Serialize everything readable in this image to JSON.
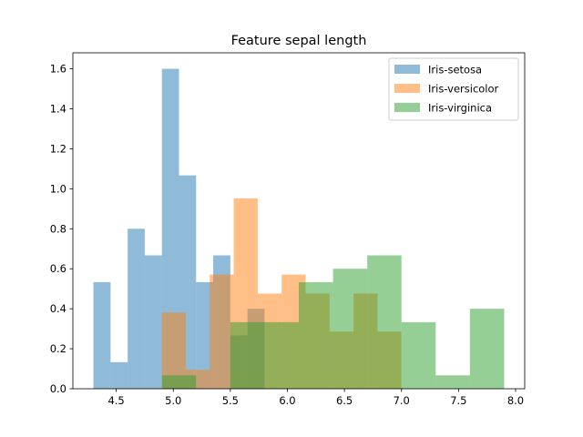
{
  "chart_data": {
    "type": "bar",
    "title": "Feature sepal length",
    "xlabel": "",
    "ylabel": "",
    "xlim": [
      4.12,
      8.08
    ],
    "ylim": [
      0,
      1.68
    ],
    "xticks": [
      4.5,
      5.0,
      5.5,
      6.0,
      6.5,
      7.0,
      7.5,
      8.0
    ],
    "xtick_labels": [
      "4.5",
      "5.0",
      "5.5",
      "6.0",
      "6.5",
      "7.0",
      "7.5",
      "8.0"
    ],
    "yticks": [
      0.0,
      0.2,
      0.4,
      0.6,
      0.8,
      1.0,
      1.2,
      1.4,
      1.6
    ],
    "ytick_labels": [
      "0.0",
      "0.2",
      "0.4",
      "0.6",
      "0.8",
      "1.0",
      "1.2",
      "1.4",
      "1.6"
    ],
    "grid": false,
    "legend_position": "top-right",
    "series": [
      {
        "name": "Iris-setosa",
        "color": "#1f77b4",
        "alpha": 0.5,
        "bins": [
          4.3,
          4.45,
          4.6,
          4.75,
          4.9,
          5.05,
          5.2,
          5.35,
          5.5,
          5.65,
          5.8
        ],
        "values": [
          0.533,
          0.133,
          0.8,
          0.667,
          1.6,
          1.067,
          0.533,
          0.667,
          0.267,
          0.4
        ]
      },
      {
        "name": "Iris-versicolor",
        "color": "#ff7f0e",
        "alpha": 0.5,
        "bins": [
          4.9,
          5.11,
          5.32,
          5.53,
          5.74,
          5.95,
          6.16,
          6.37,
          6.58,
          6.79,
          7.0
        ],
        "values": [
          0.381,
          0.095,
          0.571,
          0.952,
          0.476,
          0.571,
          0.476,
          0.286,
          0.476,
          0.286
        ]
      },
      {
        "name": "Iris-virginica",
        "color": "#2ca02c",
        "alpha": 0.5,
        "bins": [
          4.9,
          5.2,
          5.5,
          5.8,
          6.1,
          6.4,
          6.7,
          7.0,
          7.3,
          7.6,
          7.9
        ],
        "values": [
          0.067,
          0.0,
          0.333,
          0.333,
          0.533,
          0.6,
          0.667,
          0.333,
          0.067,
          0.4
        ]
      }
    ]
  }
}
